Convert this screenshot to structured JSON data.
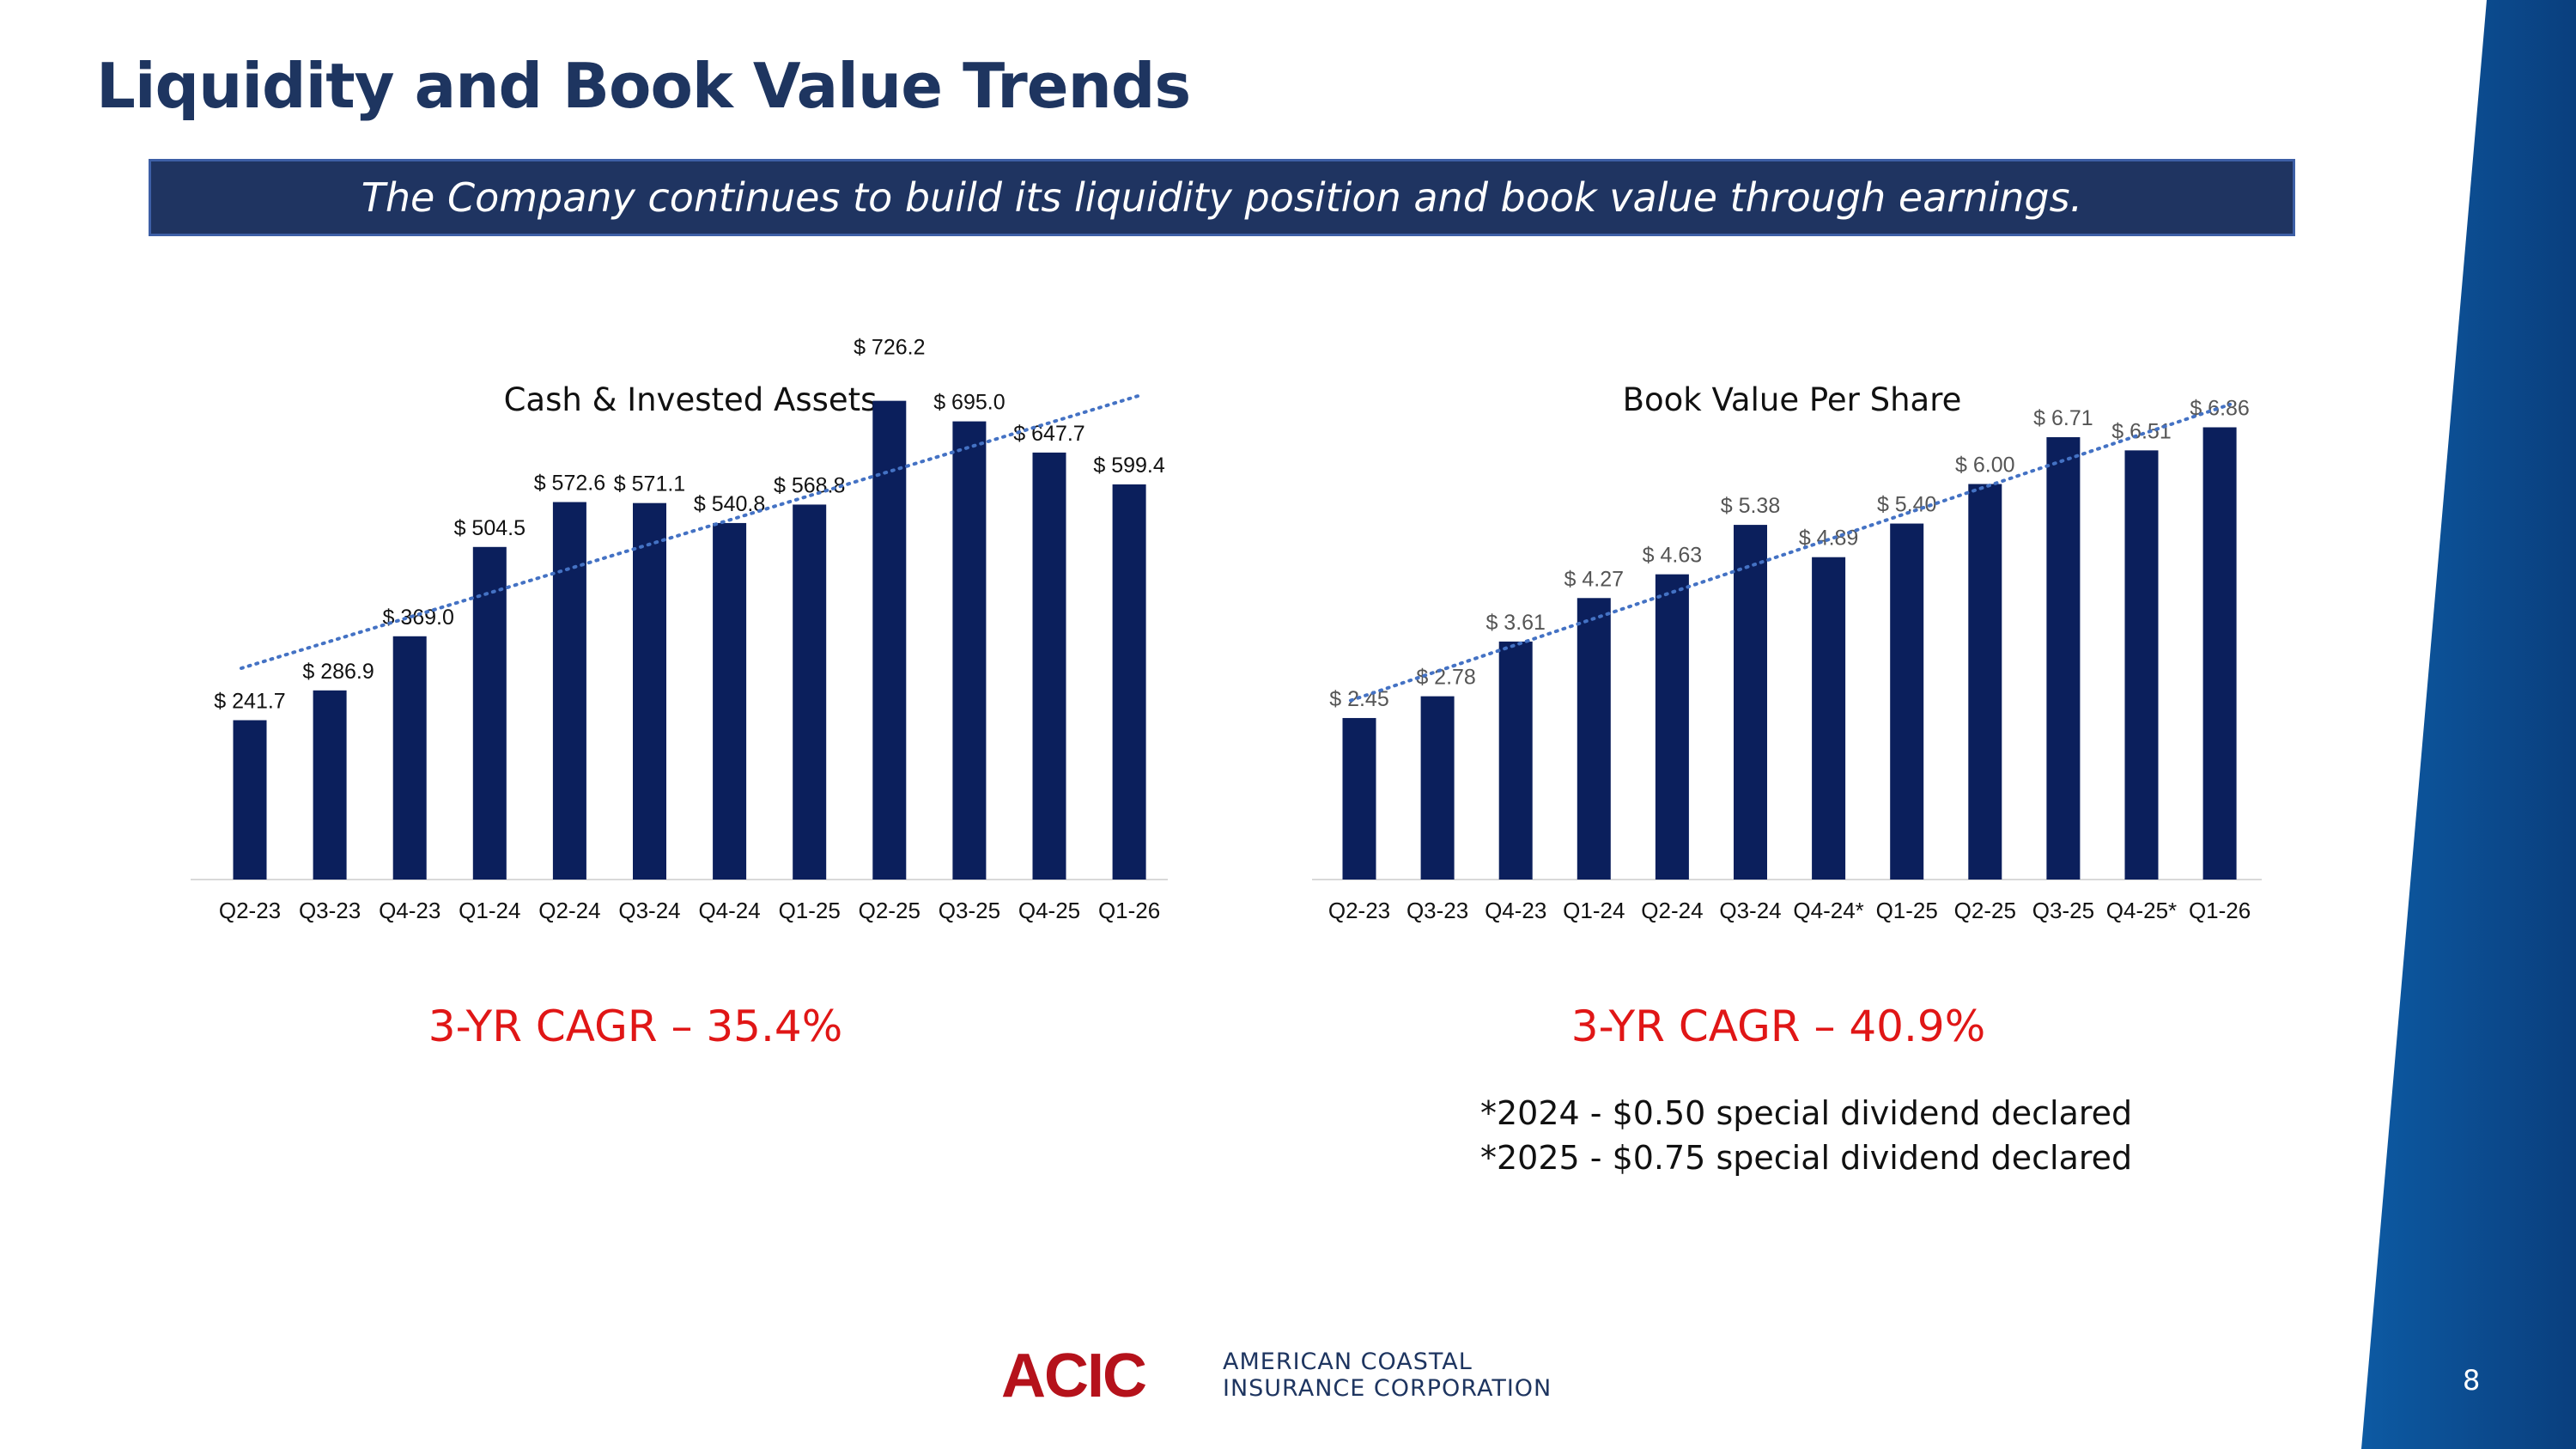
{
  "title": "Liquidity and Book Value Trends",
  "banner": "The Company continues to build its liquidity position and book value through earnings.",
  "colors": {
    "bar": "#0b1f5c",
    "trendline": "#4472c4",
    "cagr": "#e01616",
    "side_band": "#1060a8"
  },
  "chart_data": [
    {
      "type": "bar",
      "title": "Cash & Invested Assets",
      "categories": [
        "Q2-23",
        "Q3-23",
        "Q4-23",
        "Q1-24",
        "Q2-24",
        "Q3-24",
        "Q4-24",
        "Q1-25",
        "Q2-25",
        "Q3-25",
        "Q4-25",
        "Q1-26"
      ],
      "values": [
        241.7,
        286.9,
        369.0,
        504.5,
        572.6,
        571.1,
        540.8,
        568.8,
        726.2,
        695.0,
        647.7,
        599.4
      ],
      "data_labels": [
        "$ 241.7",
        "$ 286.9",
        "$ 369.0",
        "$ 504.5",
        "$ 572.6",
        "$ 571.1",
        "$ 540.8",
        "$ 568.8",
        "$ 726.2",
        "$ 695.0",
        "$ 647.7",
        "$ 599.4"
      ],
      "trendline": "linear, dotted",
      "ylim": [
        0,
        800
      ],
      "xlabel": "",
      "ylabel": "",
      "grid": false,
      "legend": "none"
    },
    {
      "type": "bar",
      "title": "Book Value Per Share",
      "categories": [
        "Q2-23",
        "Q3-23",
        "Q4-23",
        "Q1-24",
        "Q2-24",
        "Q3-24",
        "Q4-24*",
        "Q1-25",
        "Q2-25",
        "Q3-25",
        "Q4-25*",
        "Q1-26"
      ],
      "values": [
        2.45,
        2.78,
        3.61,
        4.27,
        4.63,
        5.38,
        4.89,
        5.4,
        6.0,
        6.71,
        6.51,
        6.86
      ],
      "data_labels": [
        "$ 2.45",
        "$ 2.78",
        "$ 3.61",
        "$ 4.27",
        "$ 4.63",
        "$ 5.38",
        "$ 4.89",
        "$ 5.40",
        "$ 6.00",
        "$ 6.71",
        "$ 6.51",
        "$ 6.86"
      ],
      "trendline": "linear, dotted",
      "ylim": [
        0,
        8
      ],
      "xlabel": "",
      "ylabel": "",
      "grid": false,
      "legend": "none"
    }
  ],
  "cagr_left": "3-YR CAGR – 35.4%",
  "cagr_right": "3-YR CAGR – 40.9%",
  "footnotes": [
    "*2024 - $0.50 special dividend declared",
    "*2025 - $0.75 special dividend declared"
  ],
  "logo": {
    "mark": "ACIC",
    "line1": "AMERICAN COASTAL",
    "line2": "INSURANCE CORPORATION"
  },
  "page_number": "8"
}
